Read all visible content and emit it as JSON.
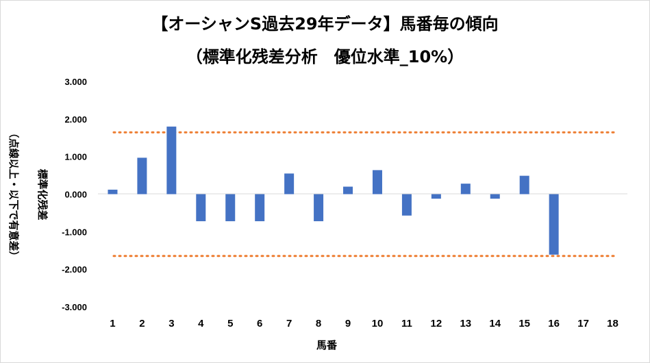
{
  "chart_data": {
    "type": "bar",
    "title": "【オーシャンS過去29年データ】馬番毎の傾向",
    "subtitle": "（標準化残差分析　優位水準_10%）",
    "xlabel": "馬番",
    "ylabel": "標準化残差",
    "ylabel_note": "（点線以上・以下で有意差）",
    "categories": [
      "1",
      "2",
      "3",
      "4",
      "5",
      "6",
      "7",
      "8",
      "9",
      "10",
      "11",
      "12",
      "13",
      "14",
      "15",
      "16",
      "17",
      "18"
    ],
    "values": [
      0.12,
      0.97,
      1.8,
      -0.72,
      -0.72,
      -0.72,
      0.55,
      -0.72,
      0.2,
      0.64,
      -0.57,
      -0.12,
      0.28,
      -0.12,
      0.49,
      -1.61,
      null,
      null
    ],
    "ylim": [
      -3,
      3
    ],
    "yticks": [
      "3.000",
      "2.000",
      "1.000",
      "0.000",
      "-1.000",
      "-2.000",
      "-3.000"
    ],
    "ytick_values": [
      3,
      2,
      1,
      0,
      -1,
      -2,
      -3
    ],
    "threshold_lines": [
      1.645,
      -1.645
    ],
    "bar_color": "#4472c4",
    "threshold_color": "#ed7d31",
    "grid": false,
    "legend": false
  }
}
